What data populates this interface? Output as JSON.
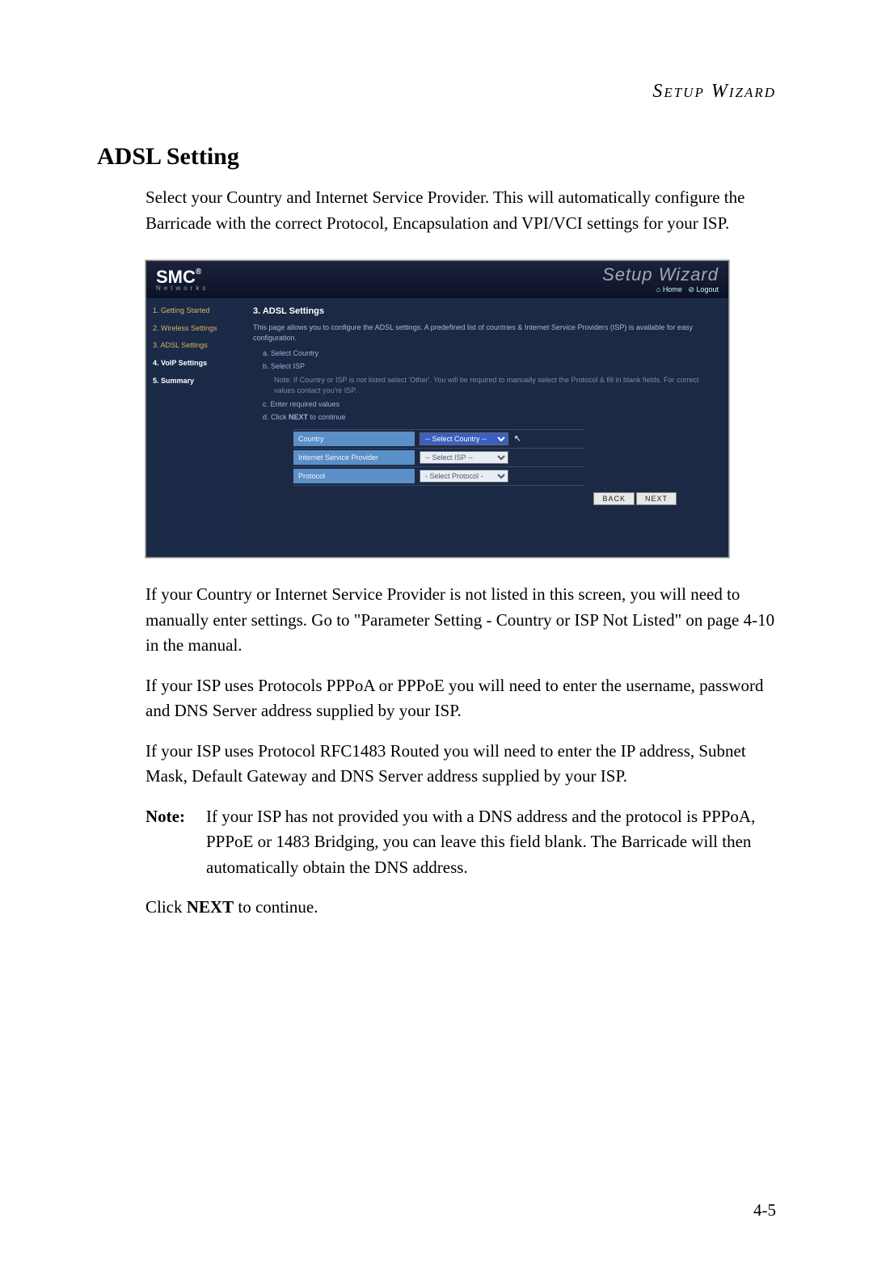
{
  "header": {
    "title": "Setup Wizard"
  },
  "section": {
    "title": "ADSL Setting",
    "para1": "Select your Country and Internet Service Provider. This will automatically configure the Barricade with the correct Protocol, Encapsulation and VPI/VCI settings for your ISP.",
    "para2": "If your Country or Internet Service Provider is not listed in this screen, you will need to manually enter settings. Go to \"Parameter Setting - Country or ISP Not Listed\" on page 4-10 in the manual.",
    "para3": "If your ISP uses Protocols PPPoA or PPPoE you will need to enter the username, password and DNS Server address supplied by your ISP.",
    "para4": "If your ISP uses Protocol RFC1483 Routed you will need to enter the IP address, Subnet Mask, Default Gateway and DNS Server address supplied by your ISP.",
    "note_label": "Note:",
    "note_text": "If your ISP has not provided you with a DNS address and the protocol is PPPoA, PPPoE or 1483 Bridging, you can leave this field blank. The Barricade will then automatically obtain the DNS address.",
    "click_next_pre": "Click ",
    "click_next_bold": "NEXT",
    "click_next_post": " to continue."
  },
  "page_number": "4-5",
  "screenshot": {
    "logo": "SMC",
    "logo_sub": "Networks",
    "wizard_title": "Setup Wizard",
    "home_link": "Home",
    "logout_link": "Logout",
    "sidebar": [
      {
        "label": "1. Getting Started",
        "cls": "sb-yellow"
      },
      {
        "label": "2. Wireless Settings",
        "cls": "sb-yellow"
      },
      {
        "label": "3. ADSL Settings",
        "cls": "sb-yellow"
      },
      {
        "label": "4. VoIP Settings",
        "cls": "sb-white"
      },
      {
        "label": "5. Summary",
        "cls": "sb-white"
      }
    ],
    "main_title": "3. ADSL Settings",
    "main_desc": "This page allows you to configure the ADSL settings. A predefined list of countries & Internet Service Providers (ISP) is available for easy configuration.",
    "steps": {
      "a": "a.  Select Country",
      "b": "b.  Select ISP",
      "note": "Note: If Country or ISP is not listed select 'Other'. You will be required to manually select the Protocol & fill in blank fields. For correct values contact you're ISP.",
      "c": "c.  Enter required values",
      "d_pre": "d.  Click ",
      "d_bold": "NEXT",
      "d_post": " to continue"
    },
    "form": {
      "country_label": "Country",
      "country_value": "-- Select Country --",
      "isp_label": "Internet Service Provider",
      "isp_value": "-- Select ISP --",
      "protocol_label": "Protocol",
      "protocol_value": "- Select Protocol -"
    },
    "back_btn": "BACK",
    "next_btn": "NEXT",
    "colors": {
      "page_bg": "#ffffff",
      "shot_bg": "#1b2945",
      "sidebar_bg": "#1a2a47",
      "field_label_bg": "#5a8fc8",
      "accent_yellow": "#e0b060"
    }
  }
}
